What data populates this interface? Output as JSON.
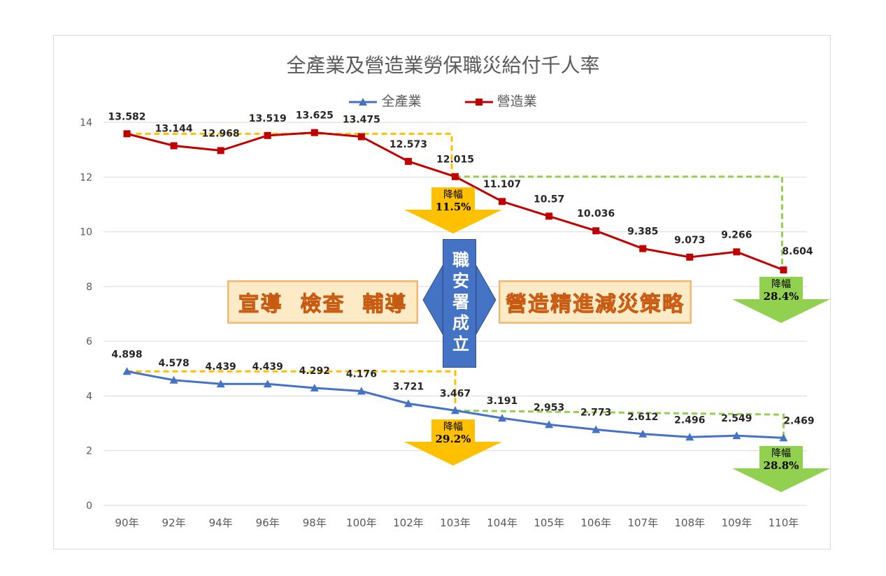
{
  "chart_data": {
    "type": "line",
    "title": "全產業及營造業勞保職災給付千人率",
    "categories": [
      "90年",
      "92年",
      "94年",
      "96年",
      "98年",
      "100年",
      "102年",
      "103年",
      "104年",
      "105年",
      "106年",
      "107年",
      "108年",
      "109年",
      "110年"
    ],
    "ylim": [
      0,
      14
    ],
    "yticks": [
      0,
      2,
      4,
      6,
      8,
      10,
      12,
      14
    ],
    "grid": true,
    "legend_position": "top",
    "series": [
      {
        "name": "全產業",
        "color": "#4472c4",
        "marker": "triangle",
        "values": [
          4.898,
          4.578,
          4.439,
          4.439,
          4.292,
          4.176,
          3.721,
          3.467,
          3.191,
          2.953,
          2.773,
          2.612,
          2.496,
          2.549,
          2.469
        ],
        "labels": [
          "4.898",
          "4.578",
          "4.439",
          "4.439",
          "4.292",
          "4.176",
          "3.721",
          "3.467",
          "3.191",
          "2.953",
          "2.773",
          "2.612",
          "2.496",
          "2.549",
          "2.469"
        ]
      },
      {
        "name": "營造業",
        "color": "#c00000",
        "marker": "square",
        "values": [
          13.582,
          13.144,
          12.968,
          13.519,
          13.625,
          13.475,
          12.573,
          12.015,
          11.107,
          10.57,
          10.036,
          9.385,
          9.073,
          9.266,
          8.604
        ],
        "labels": [
          "13.582",
          "13.144",
          "12.968",
          "13.519",
          "13.625",
          "13.475",
          "12.573",
          "12.015",
          "11.107",
          "10.57",
          "10.036",
          "9.385",
          "9.073",
          "9.266",
          "8.604"
        ]
      }
    ],
    "annotations": {
      "drop_label": "降幅",
      "drops": [
        {
          "series": "營造業",
          "text": "11.5%",
          "color": "#ffc000",
          "at": "103年"
        },
        {
          "series": "營造業",
          "text": "28.4%",
          "color": "#92d050",
          "at": "110年"
        },
        {
          "series": "全產業",
          "text": "29.2%",
          "color": "#ffc000",
          "at": "103年"
        },
        {
          "series": "全產業",
          "text": "28.8%",
          "color": "#92d050",
          "at": "110年"
        }
      ],
      "left_box": "宣導  檢查  輔導",
      "right_box": "營造精進減災策略",
      "center_box": "職安署成立"
    }
  }
}
